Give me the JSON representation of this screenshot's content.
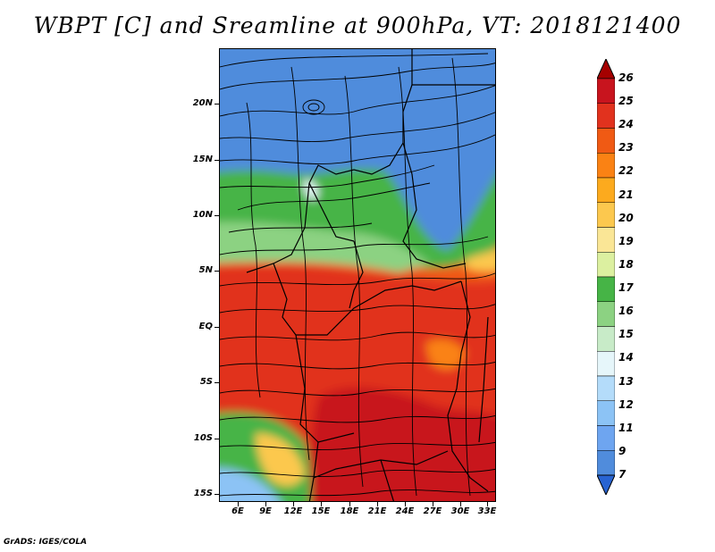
{
  "title": "WBPT [C] and Sreamline at 900hPa, VT: 2018121400",
  "footer": "GrADS: IGES/COLA",
  "lat_axis": [
    "20N",
    "15N",
    "10N",
    "5N",
    "EQ",
    "5S",
    "10S",
    "15S"
  ],
  "lon_axis": [
    "6E",
    "9E",
    "12E",
    "15E",
    "18E",
    "21E",
    "24E",
    "27E",
    "30E",
    "33E"
  ],
  "colorbar": {
    "labels": [
      "26",
      "25",
      "24",
      "23",
      "22",
      "21",
      "20",
      "19",
      "18",
      "17",
      "16",
      "15",
      "14",
      "13",
      "12",
      "11",
      "9",
      "7"
    ],
    "colors": [
      "#a50000",
      "#c8141e",
      "#e1321e",
      "#f05a14",
      "#fa8214",
      "#fcaa1e",
      "#fcc84e",
      "#fae696",
      "#dcf0a0",
      "#46b446",
      "#8cd282",
      "#c8ebc8",
      "#e6f6fa",
      "#b4dcfa",
      "#8cc3f5",
      "#6ea5f0",
      "#508cdc",
      "#2864d2"
    ]
  }
}
